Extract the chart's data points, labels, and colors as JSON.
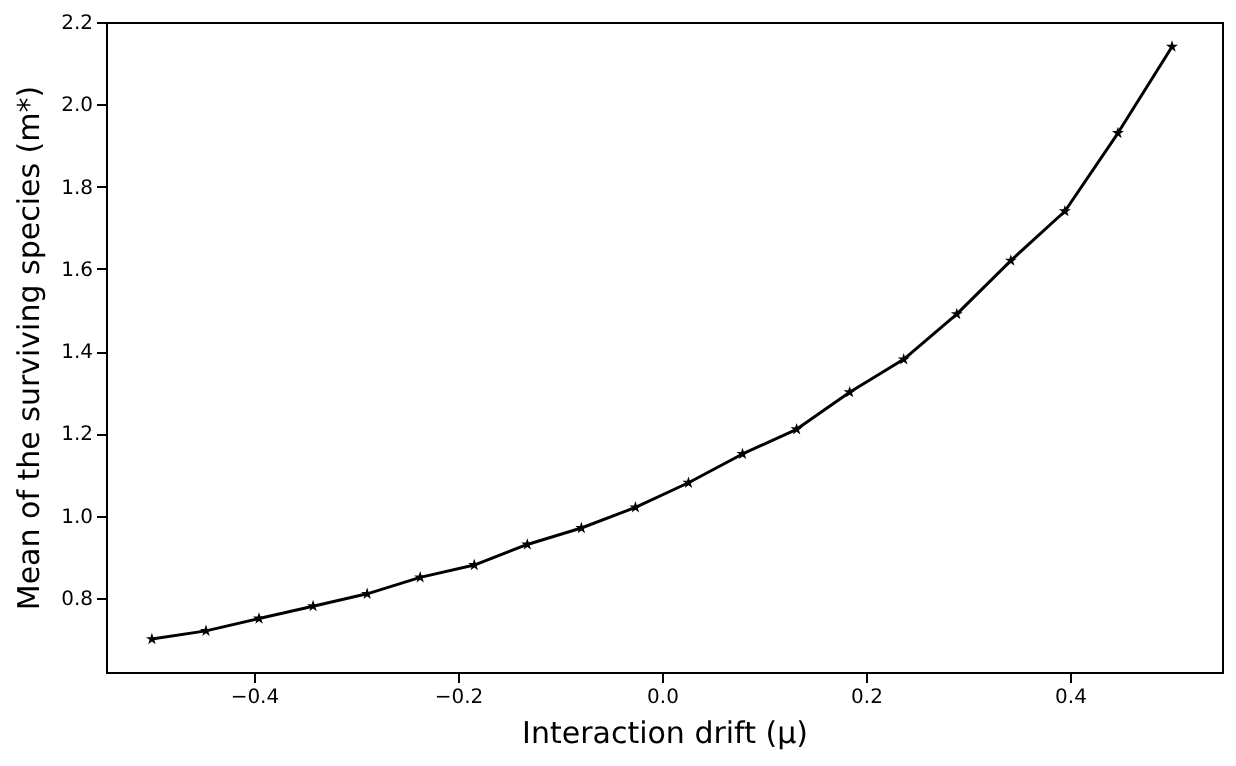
{
  "chart_data": {
    "type": "line",
    "xlabel": "Interaction drift (μ)",
    "ylabel": "Mean of the surviving species (m*)",
    "x": [
      -0.5,
      -0.447,
      -0.395,
      -0.342,
      -0.289,
      -0.237,
      -0.184,
      -0.132,
      -0.079,
      -0.026,
      0.026,
      0.079,
      0.132,
      0.184,
      0.237,
      0.289,
      0.342,
      0.395,
      0.447,
      0.5
    ],
    "series": [
      {
        "color": "#000000",
        "values": [
          0.7,
          0.72,
          0.75,
          0.78,
          0.81,
          0.85,
          0.88,
          0.93,
          0.97,
          1.02,
          1.08,
          1.15,
          1.21,
          1.3,
          1.38,
          1.49,
          1.62,
          1.74,
          1.93,
          2.14
        ]
      }
    ],
    "xlim": [
      -0.545,
      0.549
    ],
    "ylim": [
      0.62,
      2.2
    ],
    "xticks": [
      {
        "value": -0.4,
        "label": "−0.4"
      },
      {
        "value": -0.2,
        "label": "−0.2"
      },
      {
        "value": 0,
        "label": "0.0"
      },
      0.2,
      0.4
    ],
    "yticks": [
      0.8,
      {
        "value": 1,
        "label": "1.0"
      },
      1.2,
      1.4,
      1.6,
      1.8,
      {
        "value": 2,
        "label": "2.0"
      },
      2.2
    ],
    "marker": "star",
    "line_style": "solid"
  }
}
